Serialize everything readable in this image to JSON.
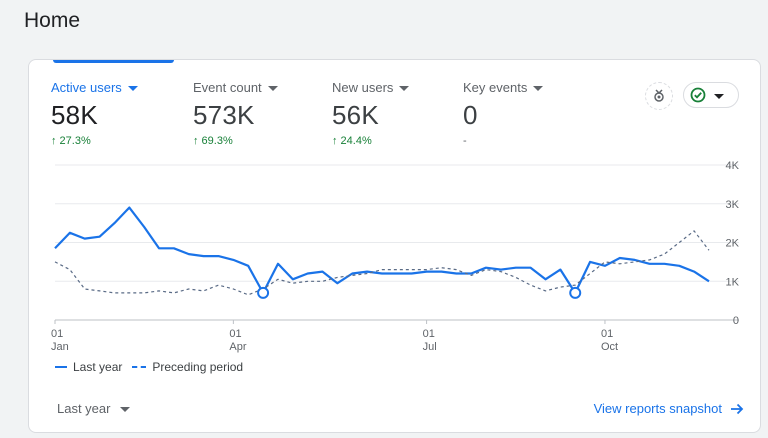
{
  "page": {
    "title": "Home"
  },
  "metrics": [
    {
      "label": "Active users",
      "value": "58K",
      "change": "↑ 27.3%"
    },
    {
      "label": "Event count",
      "value": "573K",
      "change": "↑ 69.3%"
    },
    {
      "label": "New users",
      "value": "56K",
      "change": "↑ 24.4%"
    },
    {
      "label": "Key events",
      "value": "0",
      "change": "-"
    }
  ],
  "toolbar": {
    "insights_icon": "sparkle-badge-icon",
    "status_icon": "check-circle-icon"
  },
  "colors": {
    "accent": "#1a73e8",
    "positive": "#188038"
  },
  "legend": {
    "current": "Last year",
    "previous": "Preceding period"
  },
  "footer": {
    "range_label": "Last year",
    "link_label": "View reports snapshot"
  },
  "chart_data": {
    "type": "line",
    "y_ticks": [
      "4K",
      "3K",
      "2K",
      "1K",
      "0"
    ],
    "x_ticks": [
      {
        "day": "01",
        "month": "Jan"
      },
      {
        "day": "01",
        "month": "Apr"
      },
      {
        "day": "01",
        "month": "Jul"
      },
      {
        "day": "01",
        "month": "Oct"
      }
    ],
    "ylim": [
      0,
      4000
    ],
    "series": [
      {
        "name": "Last year",
        "style": "solid",
        "values": [
          1850,
          2250,
          2100,
          2150,
          2500,
          2900,
          2400,
          1850,
          1850,
          1700,
          1650,
          1650,
          1550,
          1400,
          700,
          1450,
          1050,
          1200,
          1250,
          950,
          1200,
          1250,
          1200,
          1200,
          1200,
          1250,
          1250,
          1200,
          1200,
          1350,
          1300,
          1350,
          1350,
          1050,
          1300,
          700,
          1500,
          1400,
          1600,
          1550,
          1450,
          1450,
          1400,
          1250,
          1000
        ]
      },
      {
        "name": "Preceding period",
        "style": "dashed",
        "values": [
          1500,
          1300,
          800,
          750,
          700,
          700,
          700,
          750,
          700,
          800,
          750,
          900,
          800,
          650,
          800,
          1050,
          950,
          1000,
          1000,
          1100,
          1150,
          1200,
          1300,
          1300,
          1300,
          1300,
          1350,
          1300,
          1150,
          1300,
          1250,
          1100,
          900,
          750,
          850,
          900,
          1200,
          1500,
          1450,
          1500,
          1550,
          1700,
          2000,
          2300,
          1800
        ]
      }
    ],
    "markers": [
      14,
      35
    ]
  }
}
